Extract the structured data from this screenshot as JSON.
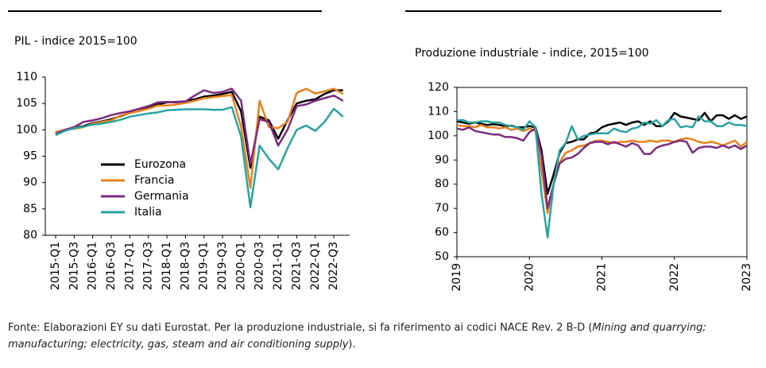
{
  "chart_data": [
    {
      "type": "line",
      "title": "PIL - indice 2015=100",
      "categories": [
        "2015-Q1",
        null,
        "2015-Q3",
        null,
        "2016-Q1",
        null,
        "2016-Q3",
        null,
        "2017-Q1",
        null,
        "2017-Q3",
        null,
        "2018-Q1",
        null,
        "2018-Q3",
        null,
        "2019-Q1",
        null,
        "2019-Q3",
        null,
        "2020-Q1",
        null,
        "2020-Q3",
        null,
        "2021-Q1",
        null,
        "2021-Q3",
        null,
        "2022-Q1",
        null,
        "2022-Q3",
        null
      ],
      "series": [
        {
          "name": "Eurozona",
          "color": "#000000",
          "values": [
            99.5,
            100,
            100.4,
            100.7,
            101.3,
            101.6,
            102,
            102.6,
            103.2,
            103.6,
            104.3,
            104.8,
            105.2,
            105.3,
            105.4,
            105.8,
            106.3,
            106.5,
            106.8,
            107.2,
            103.5,
            92.8,
            102.5,
            101.8,
            98.3,
            101.8,
            105,
            105.5,
            105.8,
            106.8,
            107.5,
            107.5
          ]
        },
        {
          "name": "Francia",
          "color": "#e8821e",
          "values": [
            99.6,
            100,
            100.2,
            100.5,
            101.2,
            101.5,
            101.8,
            102.7,
            103.2,
            103.6,
            104,
            104.6,
            104.6,
            104.8,
            105.1,
            105.5,
            106,
            106.2,
            106.4,
            106.6,
            100.6,
            89,
            105.5,
            100.5,
            100.3,
            101.5,
            107,
            107.8,
            106.9,
            107.3,
            107.8,
            106.8
          ]
        },
        {
          "name": "Germania",
          "color": "#7b2c7e",
          "values": [
            99.2,
            100,
            100.5,
            101.5,
            101.8,
            102.2,
            102.8,
            103.2,
            103.5,
            104,
            104.5,
            105.2,
            105.3,
            105.2,
            105.4,
            106.5,
            107.5,
            107,
            107.2,
            107.8,
            105.5,
            93.5,
            102,
            101.5,
            97,
            100,
            104.5,
            104.8,
            105.5,
            106,
            106.5,
            105.5
          ]
        },
        {
          "name": "Italia",
          "color": "#2aa3a0",
          "values": [
            99,
            99.8,
            100.3,
            100.6,
            101,
            101.2,
            101.5,
            101.9,
            102.5,
            102.8,
            103.1,
            103.3,
            103.7,
            103.8,
            103.9,
            103.9,
            103.9,
            103.8,
            103.8,
            104.3,
            98.7,
            85.3,
            97,
            94.5,
            92.5,
            96.5,
            100,
            100.8,
            99.8,
            101.5,
            104,
            102.5
          ]
        }
      ],
      "ylim": [
        80,
        110
      ],
      "yticks": [
        80,
        85,
        90,
        95,
        100,
        105,
        110
      ],
      "legend": "left"
    },
    {
      "type": "line",
      "title": "Produzione industriale - indice, 2015=100",
      "categories": [
        "2019",
        null,
        null,
        null,
        null,
        null,
        null,
        null,
        null,
        null,
        null,
        null,
        "2020",
        null,
        null,
        null,
        null,
        null,
        null,
        null,
        null,
        null,
        null,
        null,
        "2021",
        null,
        null,
        null,
        null,
        null,
        null,
        null,
        null,
        null,
        null,
        null,
        "2022",
        null,
        null,
        null,
        null,
        null,
        null,
        null,
        null,
        null,
        null,
        null,
        "2023"
      ],
      "series": [
        {
          "name": "Eurozona",
          "color": "#000000",
          "values": [
            106,
            105.5,
            105,
            105.5,
            105,
            104.5,
            104.8,
            104.5,
            104,
            104.2,
            103.5,
            103.5,
            104,
            103.5,
            94,
            76,
            84,
            93,
            97,
            97.5,
            98.5,
            98.5,
            101,
            101.5,
            103.5,
            104.5,
            105,
            105.5,
            104.5,
            105.5,
            106,
            104.5,
            106,
            104,
            104,
            106,
            109.5,
            108,
            107.5,
            107,
            106.5,
            109.5,
            106,
            108.5,
            108.5,
            107,
            108.5,
            107,
            108
          ]
        },
        {
          "name": "Francia",
          "color": "#e8821e",
          "values": [
            104.5,
            104,
            104,
            103.5,
            104.5,
            103.5,
            103.5,
            103,
            103.5,
            102.5,
            103,
            102,
            103,
            102,
            86,
            68,
            80,
            89,
            93,
            94,
            95.5,
            96,
            97,
            98,
            98,
            97.5,
            97,
            97.5,
            97.5,
            98,
            97.5,
            97.5,
            98,
            97.5,
            98,
            98,
            97.5,
            98.5,
            99,
            98.5,
            97.5,
            97,
            97.5,
            97,
            96,
            97,
            98,
            95.5,
            97.5
          ]
        },
        {
          "name": "Germania",
          "color": "#7b2c7e",
          "values": [
            103,
            102.5,
            103.5,
            102,
            101.5,
            101,
            100.5,
            100.5,
            99.5,
            99.5,
            99,
            98,
            101.5,
            103,
            92,
            70,
            80,
            88.5,
            90.5,
            91,
            92.5,
            95,
            97,
            97.5,
            97.5,
            96.5,
            97.5,
            96.5,
            95.5,
            97,
            96,
            92.5,
            92.5,
            95,
            96,
            96.5,
            97.5,
            98,
            97.5,
            93,
            95,
            95.5,
            95.5,
            95,
            96,
            95,
            96,
            94.5,
            96
          ]
        },
        {
          "name": "Italia",
          "color": "#2aa3a0",
          "values": [
            106.5,
            106.5,
            105.5,
            105.5,
            106,
            106,
            105.5,
            105.5,
            104.5,
            104,
            103.5,
            102.5,
            106,
            103.5,
            76,
            58,
            80,
            94,
            97,
            104,
            98.5,
            100,
            100.5,
            101,
            101,
            101,
            103,
            102,
            101.5,
            103,
            103.5,
            105.5,
            105,
            106.5,
            104,
            106.5,
            107,
            103.5,
            104,
            103.5,
            108,
            106,
            106,
            104,
            104,
            105.5,
            104.5,
            104.5,
            104
          ]
        }
      ],
      "ylim": [
        50,
        120
      ],
      "yticks": [
        50,
        60,
        70,
        80,
        90,
        100,
        110,
        120
      ]
    }
  ],
  "footnote": {
    "prefix": "Fonte: Elaborazioni EY su dati Eurostat. Per la produzione industriale, si fa riferimento ai codici NACE Rev. 2 B-D (",
    "italic": "Mining and quarrying; manufacturing; electricity, gas, steam and air conditioning supply",
    "suffix": ")."
  }
}
